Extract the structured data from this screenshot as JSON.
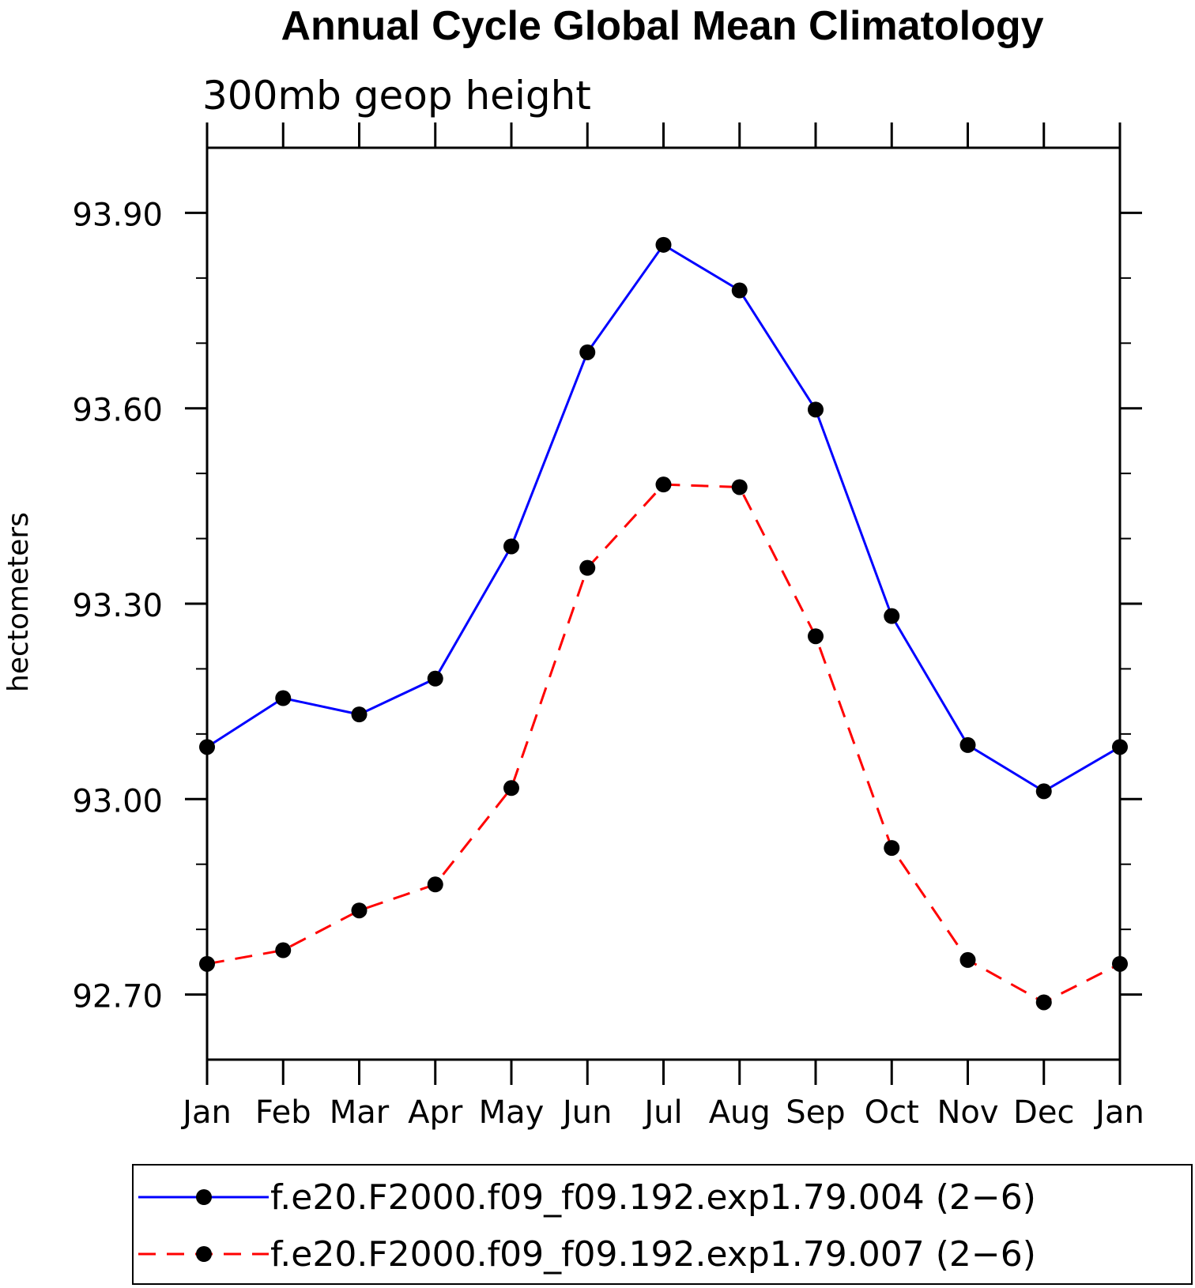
{
  "chart_data": {
    "type": "line",
    "title": "Annual Cycle Global Mean Climatology",
    "subtitle": "300mb geop height",
    "xlabel": "",
    "ylabel": "hectometers",
    "categories": [
      "Jan",
      "Feb",
      "Mar",
      "Apr",
      "May",
      "Jun",
      "Jul",
      "Aug",
      "Sep",
      "Oct",
      "Nov",
      "Dec",
      "Jan"
    ],
    "ylim": [
      92.6,
      94.0
    ],
    "yticks": [
      92.7,
      93.0,
      93.3,
      93.6,
      93.9
    ],
    "ytick_labels": [
      "92.70",
      "93.00",
      "93.30",
      "93.60",
      "93.90"
    ],
    "y_minor_step": 0.1,
    "series": [
      {
        "name": "f.e20.F2000.f09_f09.192.exp1.79.004 (2−6)",
        "color": "#0000ff",
        "line_style": "solid",
        "marker": "filled-circle",
        "values": [
          93.08,
          93.155,
          93.13,
          93.185,
          93.388,
          93.686,
          93.851,
          93.781,
          93.598,
          93.281,
          93.083,
          93.012,
          93.08
        ]
      },
      {
        "name": "f.e20.F2000.f09_f09.192.exp1.79.007 (2−6)",
        "color": "#ff0000",
        "line_style": "dashed",
        "marker": "filled-circle",
        "values": [
          92.747,
          92.768,
          92.829,
          92.869,
          93.017,
          93.355,
          93.483,
          93.479,
          93.25,
          92.925,
          92.753,
          92.688,
          92.747
        ]
      }
    ],
    "legend_position": "bottom"
  }
}
